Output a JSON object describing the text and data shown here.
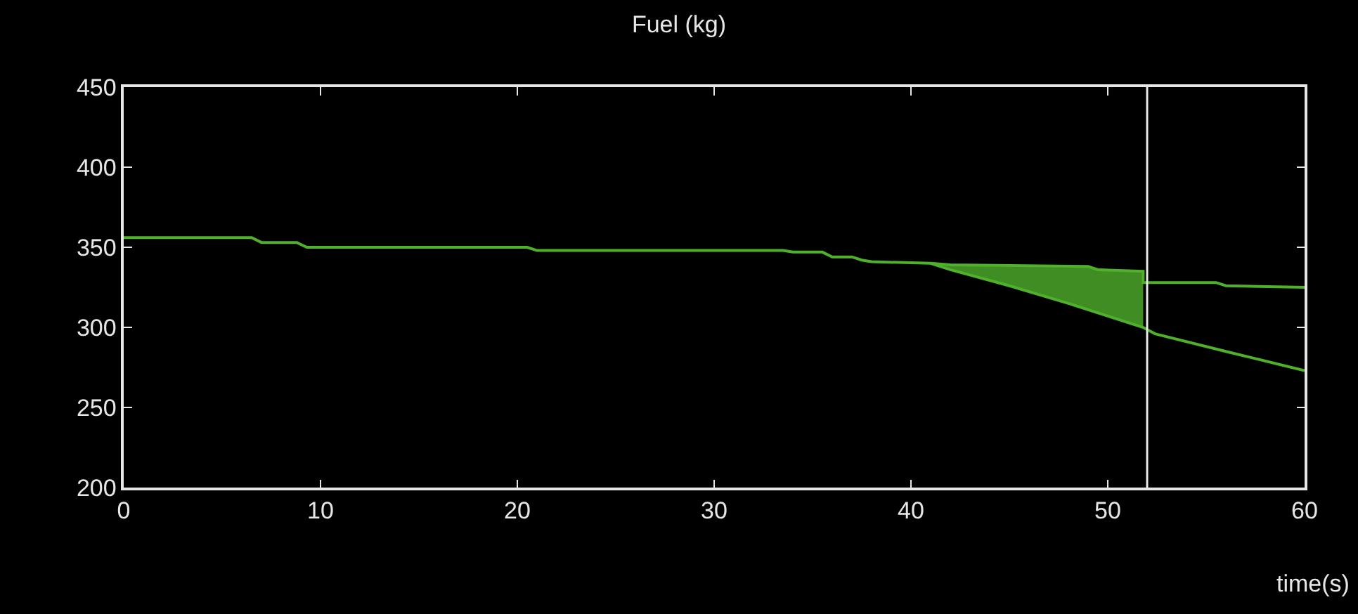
{
  "chart_data": {
    "type": "line",
    "title": "Fuel (kg)",
    "xlabel": "time(s)",
    "series": [
      {
        "color": "#4fb02c",
        "x": [
          0,
          6.5,
          7,
          8.8,
          9.3,
          20.5,
          21,
          33.5,
          34,
          35.5,
          36,
          37,
          37.5,
          38,
          41,
          42,
          49,
          49.5,
          51.8,
          51.8,
          55.5,
          56,
          60
        ],
        "values": [
          356,
          356,
          353,
          353,
          350,
          350,
          348,
          348,
          347,
          347,
          344,
          344,
          342,
          341,
          340,
          339,
          338,
          336,
          335,
          328,
          328,
          326,
          325
        ]
      },
      {
        "color": "#4fb02c",
        "x": [
          41,
          42,
          45,
          48,
          51.8,
          52.4,
          56,
          60
        ],
        "values": [
          340,
          336,
          326,
          315,
          300,
          296,
          285,
          273
        ],
        "lower": [
          340,
          336,
          326,
          315,
          300,
          null,
          null,
          null
        ],
        "upper": [
          340,
          339,
          338,
          338,
          335,
          null,
          null,
          null
        ]
      }
    ],
    "ref_lines": [
      {
        "axis": "x",
        "value": 52,
        "color": "#e8e8e8"
      }
    ],
    "xlim": [
      0,
      60
    ],
    "xticks": [
      0,
      10,
      20,
      30,
      40,
      50,
      60
    ],
    "ylim": [
      200,
      450
    ],
    "yticks": [
      200,
      250,
      300,
      350,
      400,
      450
    ],
    "grid": false,
    "marker": "none",
    "line_style": "solid"
  }
}
